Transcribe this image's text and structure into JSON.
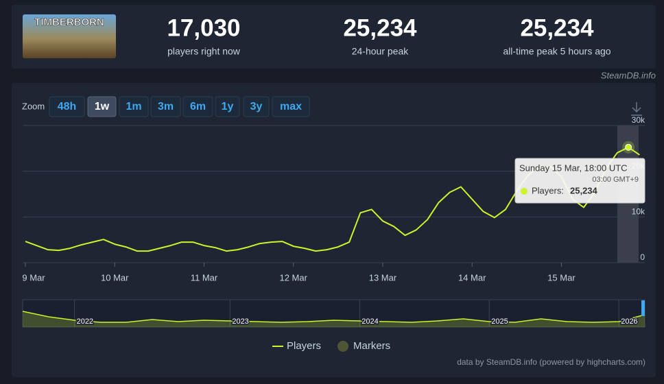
{
  "header": {
    "game": "TIMBERBORN",
    "stats": [
      {
        "value": "17,030",
        "label": "players right now"
      },
      {
        "value": "25,234",
        "label": "24-hour peak"
      },
      {
        "value": "25,234",
        "label": "all-time peak 5 hours ago"
      }
    ]
  },
  "source": "SteamDB.info",
  "zoom": {
    "label": "Zoom",
    "buttons": [
      "48h",
      "1w",
      "1m",
      "3m",
      "6m",
      "1y",
      "3y",
      "max"
    ],
    "active": "1w"
  },
  "chart_data": [
    {
      "type": "line",
      "categories": [
        "9 Mar",
        null,
        null,
        null,
        null,
        null,
        null,
        null,
        "10 Mar",
        null,
        null,
        null,
        null,
        null,
        null,
        null,
        "11 Mar",
        null,
        null,
        null,
        null,
        null,
        null,
        null,
        "12 Mar",
        null,
        null,
        null,
        null,
        null,
        null,
        null,
        "13 Mar",
        null,
        null,
        null,
        null,
        null,
        null,
        null,
        "14 Mar",
        null,
        null,
        null,
        null,
        null,
        null,
        null,
        "15 Mar",
        null,
        null,
        null,
        null,
        null,
        null,
        null
      ],
      "series": [
        {
          "name": "Players",
          "color": "#cdf52c",
          "values": [
            4630,
            3730,
            2840,
            2690,
            3130,
            3880,
            4480,
            5070,
            4030,
            3430,
            2540,
            2540,
            3130,
            3730,
            4480,
            4480,
            3730,
            3280,
            2540,
            2840,
            3430,
            4180,
            4480,
            4630,
            3580,
            3130,
            2540,
            2840,
            3430,
            4480,
            10900,
            11640,
            9100,
            7910,
            5970,
            7160,
            9400,
            13130,
            15370,
            16570,
            13880,
            11190,
            9850,
            11640,
            15670,
            19100,
            20900,
            21040,
            18810,
            13880,
            12090,
            15370,
            20600,
            24030,
            25234,
            23580
          ]
        }
      ],
      "markers_name": "Markers",
      "markers_color": "#4d5535",
      "ylim": [
        0,
        30000
      ],
      "yticks": [
        0,
        {
          "value": 10000,
          "label": "10k"
        },
        {
          "value": 20000,
          "label": "20k"
        },
        {
          "value": 30000,
          "label": "30k"
        }
      ],
      "grid": true,
      "tooltip": {
        "title": "Sunday 15 Mar, 18:00 UTC",
        "subtitle": "03:00 GMT+9",
        "series_label": "Players:",
        "value": "25,234"
      }
    },
    {
      "type": "area",
      "categories": [
        null,
        null,
        "2022",
        null,
        null,
        null,
        null,
        null,
        "2023",
        null,
        null,
        null,
        null,
        "2024",
        null,
        null,
        null,
        null,
        "2025",
        null,
        null,
        null,
        null,
        "2026",
        null
      ],
      "values": [
        23000,
        15000,
        10000,
        7000,
        7000,
        11000,
        8000,
        10000,
        9000,
        8000,
        7000,
        8000,
        10000,
        9000,
        8000,
        7000,
        9000,
        12000,
        8000,
        7000,
        12000,
        8000,
        7000,
        8000,
        18000
      ],
      "color": "#cdf52c",
      "ylim": [
        0,
        40000
      ]
    }
  ],
  "credits": "data by SteamDB.info (powered by highcharts.com)"
}
